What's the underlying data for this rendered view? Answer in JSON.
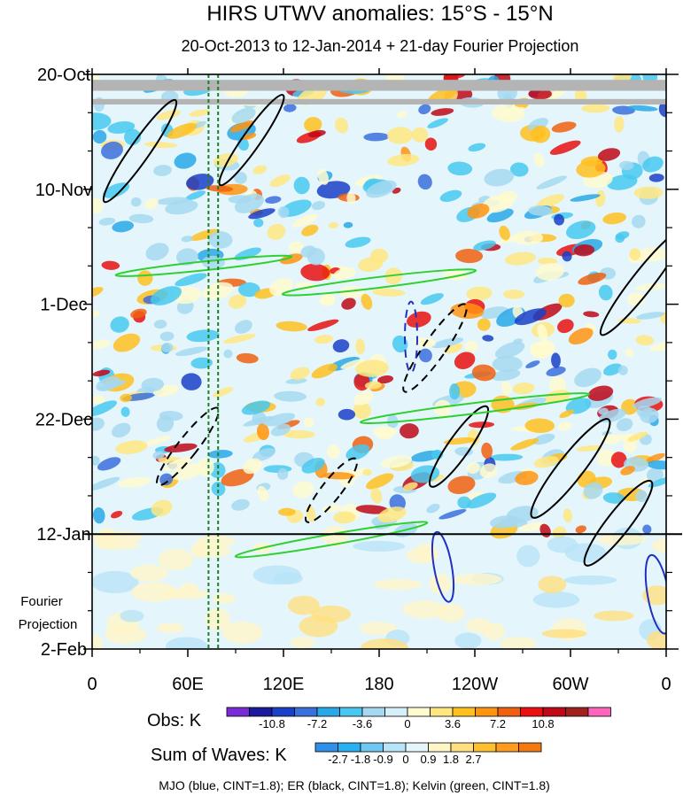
{
  "chart_data": {
    "type": "heatmap",
    "title": "HIRS UTWV anomalies: 15°S - 15°N",
    "subtitle": "20-Oct-2013 to 12-Jan-2014 + 21-day Fourier Projection",
    "x_ticks": [
      "0",
      "60E",
      "120E",
      "180",
      "120W",
      "60W",
      "0"
    ],
    "x_range": [
      0,
      360
    ],
    "y_ticks": [
      "20-Oct",
      "10-Nov",
      "1-Dec",
      "22-Dec",
      "12-Jan",
      "2-Feb"
    ],
    "y_range_days": [
      0,
      105
    ],
    "projection_label": [
      "Fourier",
      "Projection"
    ],
    "projection_start_day": 84,
    "obs_legend": {
      "label": "Obs: K",
      "tick_labels": [
        "-10.8",
        "-7.2",
        "-3.6",
        "0",
        "3.6",
        "7.2",
        "10.8"
      ],
      "colors": [
        "#7a2bd8",
        "#1a1a9c",
        "#1a3fc8",
        "#3b6fdc",
        "#29a8e8",
        "#48c8f0",
        "#a6d8f0",
        "#d4f0f8",
        "#fffad0",
        "#ffe680",
        "#ffc020",
        "#ff9410",
        "#f06010",
        "#e81010",
        "#c00818",
        "#a02020",
        "#ff66bb"
      ]
    },
    "waves_legend": {
      "label": "Sum of Waves: K",
      "tick_labels": [
        "-2.7",
        "-1.8",
        "-0.9",
        "0",
        "0.9",
        "1.8",
        "2.7"
      ],
      "colors": [
        "#3090e8",
        "#29b0f0",
        "#70c8f0",
        "#b8e4f8",
        "#e4f6fc",
        "#fff6c8",
        "#ffe080",
        "#ffc030",
        "#ff9c20",
        "#f47a10"
      ]
    },
    "footnote": "MJO (blue, CINT=1.8); ER (black, CINT=1.8); Kelvin (green, CINT=1.8)",
    "missing_data_bands_days": [
      [
        1,
        3
      ],
      [
        4.5,
        5.5
      ]
    ],
    "reference_lines_lon": [
      73,
      79
    ]
  }
}
